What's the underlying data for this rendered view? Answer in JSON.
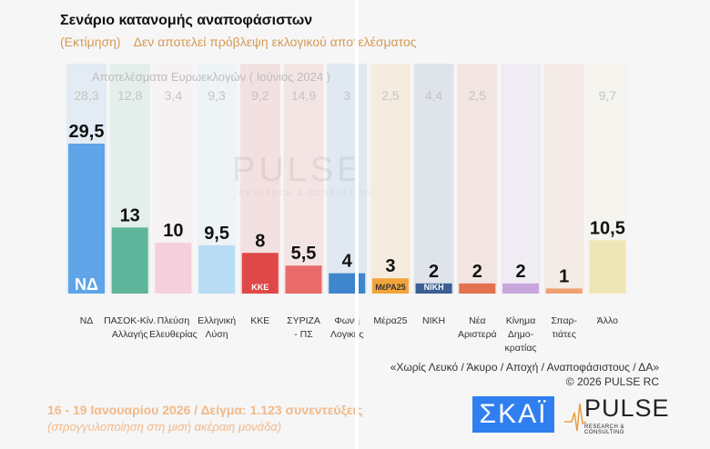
{
  "title": "Σενάριο κατανομής αναποφάσιστων",
  "subtitle": [
    "(Εκτίμηση)",
    "Δεν αποτελεί πρόβλεψη εκλογικού αποτελέσματος"
  ],
  "watermark": {
    "main": "PULSE",
    "sub": "RESEARCH & CONSULTING"
  },
  "chart_data": {
    "type": "bar",
    "categories": [
      "ΝΔ",
      "ΠΑΣΟΚ-Κίν. Αλλαγής",
      "Πλεύση Ελευθερίας",
      "Ελληνική Λύση",
      "ΚΚΕ",
      "ΣΥΡΙΖΑ - ΠΣ",
      "Φωνή Λογικής",
      "Μέρα25",
      "ΝΙΚΗ",
      "Νέα Αριστερά",
      "Κίνημα Δημο-κρατίας",
      "Σπαρ-τιάτες",
      "Άλλο"
    ],
    "category_lines": [
      [
        "ΝΔ"
      ],
      [
        "ΠΑΣΟΚ-Κίν.",
        "Αλλαγής"
      ],
      [
        "Πλεύση",
        "Ελευθερίας"
      ],
      [
        "Ελληνική",
        "Λύση"
      ],
      [
        "ΚΚΕ"
      ],
      [
        "ΣΥΡΙΖΑ",
        "- ΠΣ"
      ],
      [
        "Φωνή",
        "Λογικής"
      ],
      [
        "Μέρα25"
      ],
      [
        "ΝΙΚΗ"
      ],
      [
        "Νέα",
        "Αριστερά"
      ],
      [
        "Κίνημα",
        "Δημο-",
        "κρατίας"
      ],
      [
        "Σπαρ-",
        "τιάτες"
      ],
      [
        "Άλλο"
      ]
    ],
    "values": [
      29.5,
      13,
      10,
      9.5,
      8,
      5.5,
      4,
      3,
      2,
      2,
      2,
      1,
      10.5
    ],
    "value_labels": [
      "29,5",
      "13",
      "10",
      "9,5",
      "8",
      "5,5",
      "4",
      "3",
      "2",
      "2",
      "2",
      "1",
      "10,5"
    ],
    "colors": [
      "#5ea4e6",
      "#5fb59a",
      "#f6cfdc",
      "#b8dcf3",
      "#e04848",
      "#ea6a6a",
      "#3f86cc",
      "#f2a43a",
      "#3a5f95",
      "#e2714f",
      "#c7a6dc",
      "#f0a070",
      "#efe6b8"
    ],
    "logos": [
      "ΝΔ",
      "",
      "",
      "",
      "ΚΚΕ",
      "",
      "",
      "ΜέΡΑ25",
      "ΝΙΚΗ",
      "",
      "",
      "",
      ""
    ],
    "reference": {
      "label": "Αποτελέσματα Ευρωεκλογών  ( Ιούνιος 2024 )",
      "values": [
        "28,3",
        "12,8",
        "3,4",
        "9,3",
        "9,2",
        "14,9",
        "3",
        "2,5",
        "4,4",
        "2,5",
        "",
        "",
        "9,7"
      ]
    },
    "ylim": [
      0,
      30
    ],
    "grid": false
  },
  "footnote": [
    "«Χωρίς Λευκό / Άκυρο / Αποχή / Αναποφάσιστους / ΔΑ»",
    "©  2026  PULSE RC"
  ],
  "date_line": "16 - 19 Ιανουαρίου 2026  /  Δείγμα:  1.123 συνεντεύξεις",
  "rounding_note": "(στρογγυλοποίηση στη μισή ακέραιη μονάδα)",
  "logos": {
    "skai": "ΣΚΑΪ",
    "pulse": "PULSE",
    "pulse_sub": "RESEARCH & CONSULTING"
  }
}
